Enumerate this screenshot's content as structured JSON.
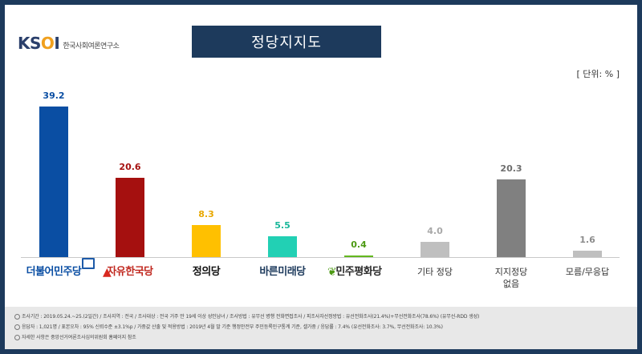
{
  "header": {
    "logo": "KSOI",
    "org_name": "한국사회여론연구소",
    "title": "정당지지도",
    "unit": "[ 단위: % ]"
  },
  "chart_data": {
    "type": "bar",
    "title": "정당지지도",
    "unit": "%",
    "categories": [
      "더불어민주당",
      "자유한국당",
      "정의당",
      "바른미래당",
      "민주평화당",
      "기타 정당",
      "지지정당 없음",
      "모름/무응답"
    ],
    "category_lines": [
      [
        "더불어민주당"
      ],
      [
        "자유한국당"
      ],
      [
        "정의당"
      ],
      [
        "바른미래당"
      ],
      [
        "민주평화당"
      ],
      [
        "기타 정당"
      ],
      [
        "지지정당",
        "없음"
      ],
      [
        "모름/무응답"
      ]
    ],
    "values": [
      39.2,
      20.6,
      8.3,
      5.5,
      0.4,
      4.0,
      20.3,
      1.6
    ],
    "value_labels": [
      "39.2",
      "20.6",
      "8.3",
      "5.5",
      "0.4",
      "4.0",
      "20.3",
      "1.6"
    ],
    "colors": [
      "#0a4ea3",
      "#a5100f",
      "#ffc000",
      "#22d0b4",
      "#63b81e",
      "#bfbfbf",
      "#808080",
      "#bfbfbf"
    ],
    "label_colors": [
      "#0a4ea3",
      "#a5100f",
      "#e8a800",
      "#18b79a",
      "#4d9a14",
      "#a8a8a8",
      "#6e6e6e",
      "#8c8c8c"
    ],
    "ylim": [
      0,
      40
    ],
    "grid": false,
    "legend": "none"
  },
  "footer": {
    "line1": "조사기간 : 2019.05.24.~25.(2일간) / 조사지역 : 전국 / 조사대상 : 전국 거주 만 19세 이상 성인남녀 / 조사방법 : 유무선 병행 전화면접조사 / 피조사자선정방법 : 유선전화조사(21.4%)+무선전화조사(78.6%) (유무선-RDD 생성)",
    "line2": "응답자 : 1,021명 / 표본오차 : 95% 신뢰수준 ±3.1%p / 가중값 산출 및 적용방법 : 2019년 4월 말 기준 행정안전부 주민등록인구통계 기준, 셀가중 / 응답률 : 7.4% (유선전화조사: 3.7%, 무선전화조사: 10.3%)",
    "line3": "자세한 사항은 중앙선거여론조사심의위원회 홈페이지 참조"
  }
}
